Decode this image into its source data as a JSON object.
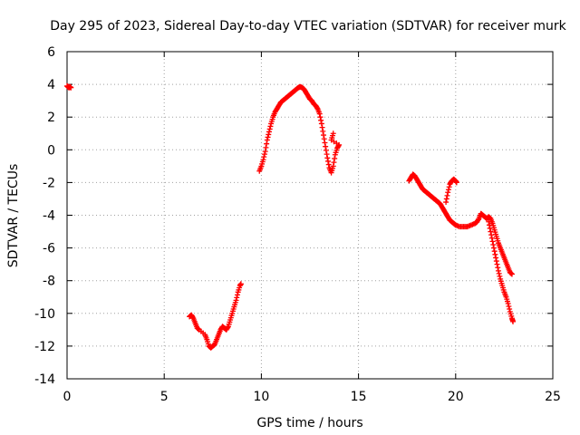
{
  "chart_data": {
    "type": "scatter",
    "title": "Day 295 of 2023, Sidereal Day-to-day VTEC variation (SDTVAR) for receiver murk",
    "xlabel": "GPS time / hours",
    "ylabel": "SDTVAR / TECUs",
    "xlim": [
      0,
      25
    ],
    "ylim": [
      -14,
      6
    ],
    "xticks": [
      0,
      5,
      10,
      15,
      20,
      25
    ],
    "yticks": [
      -14,
      -12,
      -10,
      -8,
      -6,
      -4,
      -2,
      0,
      2,
      4,
      6
    ],
    "grid": true,
    "marker": "plus",
    "color": "#ff0000",
    "series": [
      {
        "name": "SDTVAR",
        "segments": [
          [
            [
              0.0,
              3.9
            ],
            [
              0.05,
              3.85
            ],
            [
              0.1,
              3.8
            ],
            [
              0.15,
              3.85
            ],
            [
              0.2,
              3.8
            ]
          ],
          [
            [
              6.3,
              -10.2
            ],
            [
              6.4,
              -10.1
            ],
            [
              6.5,
              -10.3
            ],
            [
              6.6,
              -10.6
            ],
            [
              6.7,
              -10.9
            ],
            [
              6.8,
              -11.0
            ],
            [
              7.1,
              -11.3
            ],
            [
              7.2,
              -11.6
            ],
            [
              7.3,
              -12.0
            ],
            [
              7.4,
              -12.1
            ],
            [
              7.5,
              -12.0
            ],
            [
              7.6,
              -11.9
            ],
            [
              7.7,
              -11.6
            ],
            [
              7.8,
              -11.3
            ],
            [
              7.9,
              -11.0
            ],
            [
              8.0,
              -10.8
            ],
            [
              8.1,
              -10.9
            ],
            [
              8.2,
              -11.0
            ],
            [
              8.3,
              -10.8
            ],
            [
              8.4,
              -10.4
            ],
            [
              8.5,
              -10.0
            ],
            [
              8.6,
              -9.6
            ],
            [
              8.7,
              -9.2
            ],
            [
              8.8,
              -8.7
            ],
            [
              8.9,
              -8.3
            ],
            [
              8.95,
              -8.2
            ]
          ],
          [
            [
              9.9,
              -1.3
            ],
            [
              10.0,
              -1.0
            ],
            [
              10.1,
              -0.6
            ],
            [
              10.2,
              -0.1
            ],
            [
              10.3,
              0.6
            ],
            [
              10.4,
              1.1
            ],
            [
              10.5,
              1.6
            ],
            [
              10.6,
              2.0
            ],
            [
              10.7,
              2.3
            ],
            [
              10.8,
              2.5
            ],
            [
              10.9,
              2.7
            ],
            [
              11.0,
              2.9
            ],
            [
              11.1,
              3.0
            ],
            [
              11.2,
              3.1
            ],
            [
              11.3,
              3.2
            ],
            [
              11.4,
              3.3
            ],
            [
              11.5,
              3.4
            ],
            [
              11.6,
              3.5
            ],
            [
              11.7,
              3.6
            ],
            [
              11.8,
              3.7
            ],
            [
              11.9,
              3.8
            ],
            [
              12.0,
              3.85
            ],
            [
              12.1,
              3.8
            ],
            [
              12.2,
              3.7
            ],
            [
              12.3,
              3.5
            ],
            [
              12.4,
              3.3
            ],
            [
              12.5,
              3.1
            ],
            [
              12.6,
              3.0
            ],
            [
              12.7,
              2.8
            ],
            [
              12.8,
              2.7
            ],
            [
              12.9,
              2.5
            ],
            [
              13.0,
              2.2
            ],
            [
              13.1,
              1.6
            ],
            [
              13.2,
              0.9
            ],
            [
              13.3,
              0.2
            ],
            [
              13.4,
              -0.5
            ],
            [
              13.5,
              -1.1
            ],
            [
              13.6,
              -1.4
            ],
            [
              13.7,
              -1.0
            ],
            [
              13.8,
              -0.3
            ],
            [
              13.9,
              0.1
            ],
            [
              14.0,
              0.3
            ],
            [
              13.6,
              0.6
            ],
            [
              13.7,
              1.0
            ]
          ],
          [
            [
              17.6,
              -1.9
            ],
            [
              17.7,
              -1.7
            ],
            [
              17.8,
              -1.5
            ],
            [
              17.9,
              -1.6
            ],
            [
              18.0,
              -1.8
            ],
            [
              18.1,
              -2.0
            ],
            [
              18.2,
              -2.2
            ],
            [
              18.3,
              -2.4
            ],
            [
              18.4,
              -2.5
            ],
            [
              18.5,
              -2.6
            ],
            [
              18.6,
              -2.7
            ],
            [
              18.7,
              -2.8
            ],
            [
              18.8,
              -2.9
            ],
            [
              18.9,
              -3.0
            ],
            [
              19.0,
              -3.1
            ],
            [
              19.1,
              -3.2
            ],
            [
              19.2,
              -3.3
            ],
            [
              19.3,
              -3.5
            ],
            [
              19.4,
              -3.7
            ],
            [
              19.5,
              -3.9
            ],
            [
              19.6,
              -4.1
            ],
            [
              19.7,
              -4.3
            ],
            [
              19.8,
              -4.4
            ],
            [
              19.9,
              -4.5
            ],
            [
              20.0,
              -4.6
            ],
            [
              20.2,
              -4.7
            ],
            [
              20.4,
              -4.7
            ],
            [
              20.6,
              -4.7
            ],
            [
              20.8,
              -4.6
            ],
            [
              21.0,
              -4.5
            ],
            [
              21.1,
              -4.4
            ],
            [
              21.2,
              -4.2
            ],
            [
              21.3,
              -3.9
            ],
            [
              21.4,
              -4.0
            ],
            [
              21.5,
              -4.1
            ],
            [
              21.6,
              -4.2
            ],
            [
              21.7,
              -4.1
            ],
            [
              21.8,
              -4.2
            ],
            [
              21.9,
              -4.5
            ],
            [
              22.0,
              -4.9
            ],
            [
              22.1,
              -5.3
            ],
            [
              22.2,
              -5.7
            ],
            [
              22.3,
              -6.0
            ],
            [
              22.4,
              -6.3
            ],
            [
              22.5,
              -6.6
            ],
            [
              22.6,
              -6.9
            ],
            [
              22.7,
              -7.2
            ],
            [
              22.8,
              -7.5
            ],
            [
              22.9,
              -7.6
            ]
          ],
          [
            [
              19.5,
              -3.2
            ],
            [
              19.6,
              -2.6
            ],
            [
              19.7,
              -2.1
            ],
            [
              19.8,
              -1.9
            ],
            [
              19.9,
              -1.8
            ],
            [
              20.0,
              -1.9
            ],
            [
              20.05,
              -2.0
            ]
          ],
          [
            [
              21.7,
              -4.4
            ],
            [
              21.8,
              -5.0
            ],
            [
              21.9,
              -5.6
            ],
            [
              22.0,
              -6.2
            ],
            [
              22.1,
              -6.8
            ],
            [
              22.2,
              -7.4
            ],
            [
              22.3,
              -7.9
            ],
            [
              22.4,
              -8.3
            ],
            [
              22.5,
              -8.7
            ],
            [
              22.6,
              -9.0
            ],
            [
              22.7,
              -9.4
            ],
            [
              22.8,
              -9.9
            ],
            [
              22.9,
              -10.3
            ],
            [
              22.95,
              -10.5
            ]
          ]
        ]
      }
    ]
  }
}
